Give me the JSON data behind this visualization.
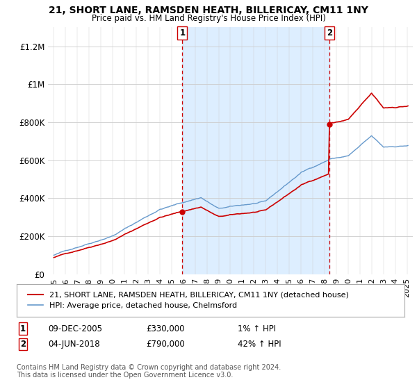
{
  "title": "21, SHORT LANE, RAMSDEN HEATH, BILLERICAY, CM11 1NY",
  "subtitle": "Price paid vs. HM Land Registry's House Price Index (HPI)",
  "legend_line1": "21, SHORT LANE, RAMSDEN HEATH, BILLERICAY, CM11 1NY (detached house)",
  "legend_line2": "HPI: Average price, detached house, Chelmsford",
  "footnote": "Contains HM Land Registry data © Crown copyright and database right 2024.\nThis data is licensed under the Open Government Licence v3.0.",
  "sale1_date": "09-DEC-2005",
  "sale1_price": "£330,000",
  "sale1_hpi": "1% ↑ HPI",
  "sale2_date": "04-JUN-2018",
  "sale2_price": "£790,000",
  "sale2_hpi": "42% ↑ HPI",
  "red_color": "#cc0000",
  "blue_color": "#6699cc",
  "shaded_color": "#ddeeff",
  "annotation_color": "#cc0000",
  "background_color": "#ffffff",
  "ylim": [
    0,
    1300000
  ],
  "yticks": [
    0,
    200000,
    400000,
    600000,
    800000,
    1000000,
    1200000
  ],
  "sale1_x": 2005.92,
  "sale1_y": 330000,
  "sale2_x": 2018.42,
  "sale2_y": 790000,
  "vline1_x": 2005.92,
  "vline2_x": 2018.42,
  "xlim_left": 1994.5,
  "xlim_right": 2025.5
}
